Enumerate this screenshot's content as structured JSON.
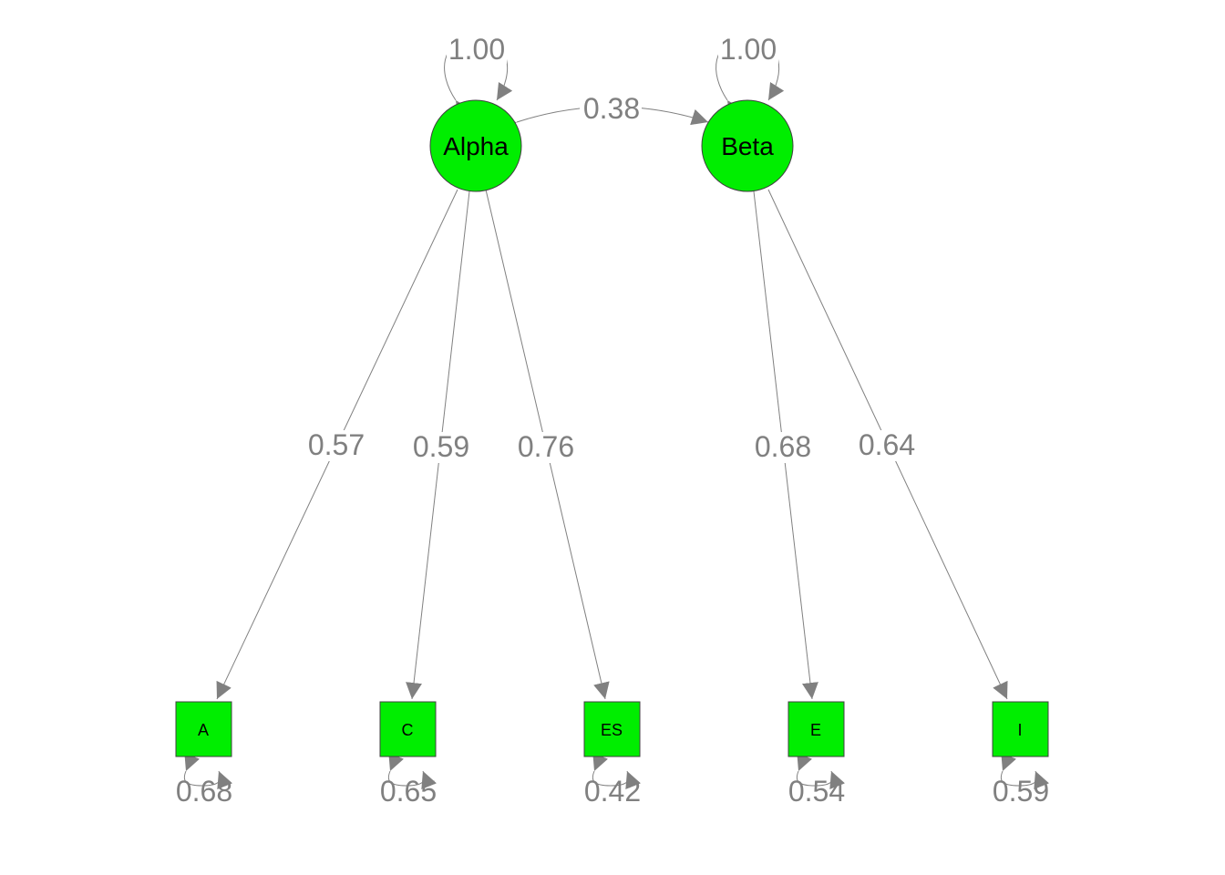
{
  "colors": {
    "node_fill": "#00ee00",
    "edge": "#808080",
    "label_text": "#808080",
    "node_text": "#000000"
  },
  "latents": [
    {
      "id": "alpha",
      "name": "Alpha",
      "variance": "1.00"
    },
    {
      "id": "beta",
      "name": "Beta",
      "variance": "1.00"
    }
  ],
  "covariance": {
    "from": "alpha",
    "to": "beta",
    "value": "0.38"
  },
  "manifests": [
    {
      "id": "A",
      "name": "A",
      "residual": "0.68"
    },
    {
      "id": "C",
      "name": "C",
      "residual": "0.65"
    },
    {
      "id": "ES",
      "name": "ES",
      "residual": "0.42"
    },
    {
      "id": "E",
      "name": "E",
      "residual": "0.54"
    },
    {
      "id": "I",
      "name": "I",
      "residual": "0.59"
    }
  ],
  "loadings": [
    {
      "from": "alpha",
      "to": "A",
      "value": "0.57"
    },
    {
      "from": "alpha",
      "to": "C",
      "value": "0.59"
    },
    {
      "from": "alpha",
      "to": "ES",
      "value": "0.76"
    },
    {
      "from": "beta",
      "to": "E",
      "value": "0.68"
    },
    {
      "from": "beta",
      "to": "I",
      "value": "0.64"
    }
  ]
}
